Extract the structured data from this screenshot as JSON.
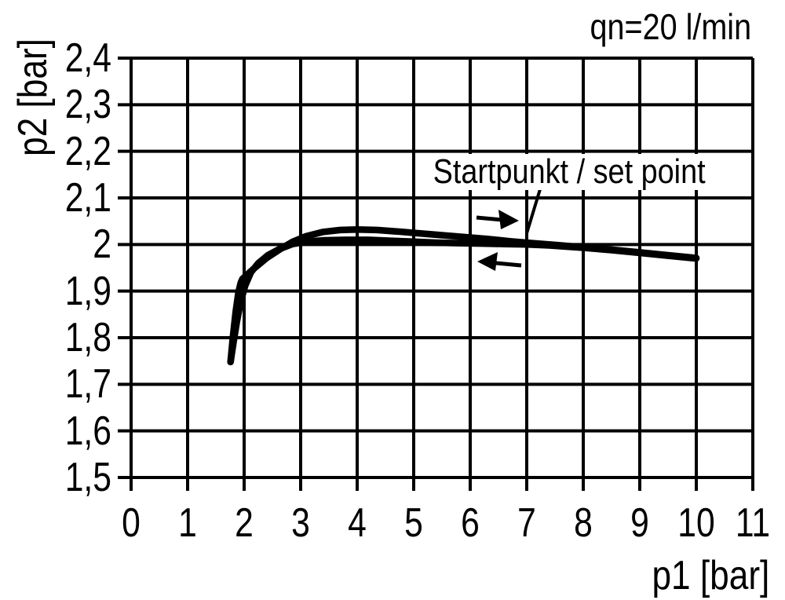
{
  "figure": {
    "flow_label": "qn=20 l/min",
    "x_axis_label": "p1 [bar]",
    "y_axis_label": "p2 [bar]",
    "annotation_label": "Startpunkt / set point"
  },
  "colors": {
    "ink": "#000000",
    "background": "#ffffff"
  },
  "icons": [
    {
      "name": "right-arrow-icon",
      "meaning": "traversal direction right"
    },
    {
      "name": "left-arrow-icon",
      "meaning": "traversal direction left"
    }
  ],
  "chart_data": {
    "type": "line",
    "title": "qn=20 l/min",
    "xlabel": "p1 [bar]",
    "ylabel": "p2 [bar]",
    "xlim": [
      0,
      11
    ],
    "ylim": [
      1.5,
      2.4
    ],
    "grid": true,
    "x_ticks": [
      {
        "value": 0,
        "label": "0"
      },
      {
        "value": 1,
        "label": "1"
      },
      {
        "value": 2,
        "label": "2"
      },
      {
        "value": 3,
        "label": "3"
      },
      {
        "value": 4,
        "label": "4"
      },
      {
        "value": 5,
        "label": "5"
      },
      {
        "value": 6,
        "label": "6"
      },
      {
        "value": 7,
        "label": "7"
      },
      {
        "value": 8,
        "label": "8"
      },
      {
        "value": 9,
        "label": "9"
      },
      {
        "value": 10,
        "label": "10"
      },
      {
        "value": 11,
        "label": "11"
      }
    ],
    "y_ticks": [
      {
        "value": 2.4,
        "label": "2,4"
      },
      {
        "value": 2.3,
        "label": "2,3"
      },
      {
        "value": 2.2,
        "label": "2,2"
      },
      {
        "value": 2.1,
        "label": "2,1"
      },
      {
        "value": 2.0,
        "label": "2"
      },
      {
        "value": 1.9,
        "label": "1,9"
      },
      {
        "value": 1.8,
        "label": "1,8"
      },
      {
        "value": 1.7,
        "label": "1,7"
      },
      {
        "value": 1.6,
        "label": "1,6"
      },
      {
        "value": 1.5,
        "label": "1,5"
      }
    ],
    "annotation": {
      "label": "Startpunkt / set point",
      "target": {
        "p1": 7.0,
        "p2": 2.0
      }
    },
    "series": [
      {
        "name": "upper-branch (right-arrow direction)",
        "direction": "right",
        "points": [
          [
            1.76,
            1.748
          ],
          [
            1.8,
            1.8
          ],
          [
            1.85,
            1.855
          ],
          [
            1.9,
            1.898
          ],
          [
            1.94,
            1.918
          ],
          [
            1.97,
            1.926
          ],
          [
            2.15,
            1.946
          ],
          [
            2.4,
            1.971
          ],
          [
            2.65,
            1.991
          ],
          [
            2.86,
            2.006
          ],
          [
            3.1,
            2.018
          ],
          [
            3.4,
            2.027
          ],
          [
            3.7,
            2.031
          ],
          [
            4.0,
            2.032
          ],
          [
            4.35,
            2.031
          ],
          [
            4.7,
            2.028
          ],
          [
            5.1,
            2.024
          ],
          [
            5.5,
            2.02
          ],
          [
            5.9,
            2.016
          ],
          [
            6.3,
            2.012
          ],
          [
            6.7,
            2.007
          ],
          [
            7.1,
            2.003
          ],
          [
            7.5,
            1.999
          ],
          [
            8.0,
            1.994
          ],
          [
            8.5,
            1.989
          ],
          [
            9.0,
            1.983
          ],
          [
            9.5,
            1.977
          ],
          [
            10.0,
            1.971
          ]
        ]
      },
      {
        "name": "lower-branch (left-arrow direction)",
        "direction": "left",
        "points": [
          [
            1.76,
            1.748
          ],
          [
            1.81,
            1.788
          ],
          [
            1.87,
            1.833
          ],
          [
            1.94,
            1.878
          ],
          [
            2.02,
            1.912
          ],
          [
            2.12,
            1.94
          ],
          [
            2.25,
            1.96
          ],
          [
            2.42,
            1.977
          ],
          [
            2.62,
            1.99
          ],
          [
            2.86,
            2.001
          ],
          [
            3.1,
            2.006
          ],
          [
            3.4,
            2.009
          ],
          [
            3.8,
            2.01
          ],
          [
            4.2,
            2.01
          ],
          [
            4.6,
            2.008
          ],
          [
            5.0,
            2.006
          ],
          [
            5.4,
            2.004
          ],
          [
            5.8,
            2.003
          ],
          [
            6.2,
            2.002
          ],
          [
            6.6,
            2.001
          ],
          [
            7.0,
            2.0
          ],
          [
            7.4,
            1.998
          ],
          [
            8.0,
            1.993
          ],
          [
            8.5,
            1.988
          ],
          [
            9.0,
            1.982
          ],
          [
            9.5,
            1.976
          ],
          [
            10.0,
            1.97
          ]
        ]
      }
    ]
  }
}
